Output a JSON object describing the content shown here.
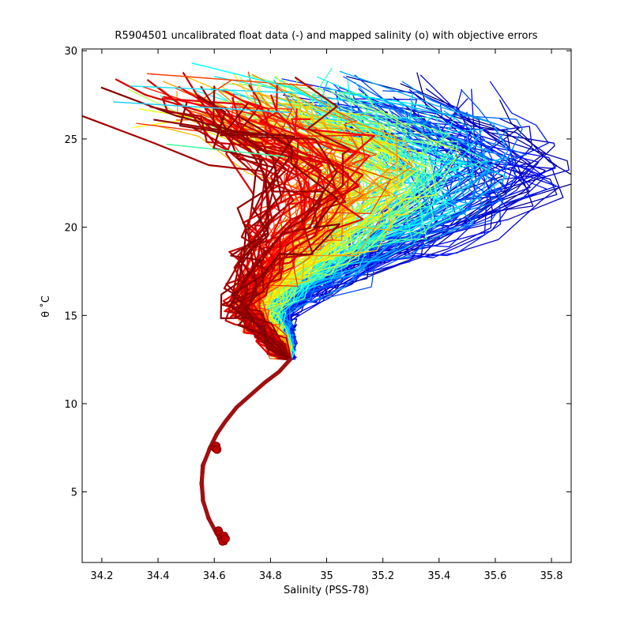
{
  "chart_data": {
    "type": "line",
    "title": "R5904501 uncalibrated float data (-) and mapped salinity (o) with objective errors",
    "xlabel": "Salinity (PSS-78)",
    "ylabel": "θ ˚C",
    "xlim": [
      34.13,
      35.87
    ],
    "ylim": [
      1.0,
      30.1
    ],
    "xticks": [
      "34.2",
      "34.4",
      "34.6",
      "34.8",
      "35",
      "35.2",
      "35.4",
      "35.6",
      "35.8"
    ],
    "xtick_values": [
      34.2,
      34.4,
      34.6,
      34.8,
      35.0,
      35.2,
      35.4,
      35.6,
      35.8
    ],
    "yticks": [
      "5",
      "10",
      "15",
      "20",
      "25",
      "30"
    ],
    "ytick_values": [
      5,
      10,
      15,
      20,
      25,
      30
    ],
    "grid": false,
    "colormap": "jet (profile index: early blue → late dark red)",
    "colors": {
      "jet": [
        "#00008f",
        "#0000ff",
        "#0080ff",
        "#00ffff",
        "#80ff80",
        "#ffff00",
        "#ff8000",
        "#ff0000",
        "#800000"
      ],
      "mapped_marker": "#c00000"
    },
    "deep_curve": {
      "description": "shared deep theta-S curve of all profiles",
      "x": [
        34.64,
        34.61,
        34.58,
        34.56,
        34.555,
        34.56,
        34.585,
        34.61,
        34.64,
        34.68,
        34.73,
        34.78,
        34.83,
        34.87
      ],
      "y": [
        2.1,
        2.6,
        3.5,
        4.5,
        5.5,
        6.5,
        7.5,
        8.3,
        9.0,
        9.8,
        10.5,
        11.2,
        11.8,
        12.5
      ]
    },
    "mapped_points": {
      "description": "mapped salinity (o) markers on the deep curve",
      "x": [
        34.615,
        34.62,
        34.625,
        34.63,
        34.63,
        34.635,
        34.64,
        34.603,
        34.607,
        34.61
      ],
      "y": [
        2.8,
        2.6,
        2.4,
        2.3,
        2.2,
        2.5,
        2.35,
        7.5,
        7.6,
        7.4
      ]
    },
    "profile_groups": [
      {
        "name": "early profiles (blue / cyan)",
        "color_range": [
          "#0000ff",
          "#00e0ff"
        ],
        "envelope_x": [
          34.87,
          35.0,
          35.2,
          35.45,
          35.65,
          35.76,
          35.6,
          35.3,
          35.05,
          34.9
        ],
        "envelope_y": [
          12.5,
          15.0,
          17.5,
          19.5,
          21.5,
          23.4,
          25.5,
          27.5,
          28.0,
          27.0
        ]
      },
      {
        "name": "middle profiles (green / yellow)",
        "color_range": [
          "#40ff80",
          "#ffff00"
        ],
        "envelope_x": [
          34.87,
          34.95,
          35.1,
          35.3,
          35.5,
          35.6,
          35.45,
          35.15,
          34.95,
          34.8
        ],
        "envelope_y": [
          12.5,
          15.5,
          18.0,
          20.0,
          22.0,
          24.0,
          26.0,
          27.5,
          27.2,
          25.0
        ]
      },
      {
        "name": "late profiles (orange / red)",
        "color_range": [
          "#ff8000",
          "#800000"
        ],
        "envelope_x": [
          34.87,
          34.7,
          34.68,
          34.72,
          34.8,
          34.85,
          34.9,
          34.95
        ],
        "envelope_y": [
          12.5,
          13.5,
          16.0,
          20.0,
          24.0,
          26.5,
          27.8,
          28.2
        ]
      }
    ],
    "surface_outliers": [
      {
        "x0": 34.87,
        "y0": 26.5,
        "x1": 34.24,
        "y1": 27.1,
        "color": "#20d0ff"
      },
      {
        "x0": 34.9,
        "y0": 27.6,
        "x1": 34.3,
        "y1": 28.0,
        "color": "#20e0ff"
      },
      {
        "x0": 34.85,
        "y0": 24.0,
        "x1": 34.43,
        "y1": 24.7,
        "color": "#40ffa0"
      },
      {
        "x0": 34.95,
        "y0": 28.0,
        "x1": 34.36,
        "y1": 28.7,
        "color": "#ff4000"
      },
      {
        "x0": 34.9,
        "y0": 27.8,
        "x1": 34.52,
        "y1": 29.3,
        "color": "#00ffff"
      }
    ]
  }
}
